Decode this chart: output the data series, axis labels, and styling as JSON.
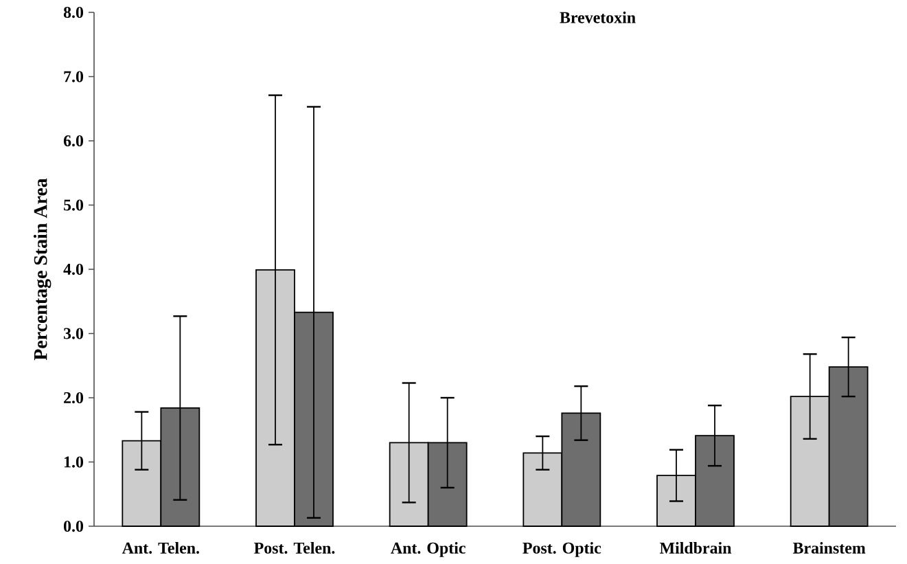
{
  "chart_data": {
    "type": "bar",
    "title": "Brevetoxin",
    "ylabel": "Percentage Stain Area",
    "categories": [
      "Ant. Telen.",
      "Post. Telen.",
      "Ant. Optic",
      "Post. Optic",
      "Mildbrain",
      "Brainstem"
    ],
    "series": [
      {
        "color": "#cccccc",
        "values": [
          1.33,
          3.99,
          1.3,
          1.14,
          0.79,
          2.02
        ],
        "errors": [
          0.45,
          2.72,
          0.93,
          0.26,
          0.4,
          0.66
        ]
      },
      {
        "color": "#6e6e6e",
        "values": [
          1.84,
          3.33,
          1.3,
          1.76,
          1.41,
          2.48
        ],
        "errors": [
          1.43,
          3.2,
          0.7,
          0.42,
          0.47,
          0.46
        ]
      }
    ],
    "ylim": [
      0,
      8
    ],
    "yticks": [
      {
        "value": 0,
        "label": "0.0"
      },
      {
        "value": 1,
        "label": "1.0"
      },
      {
        "value": 2,
        "label": "2.0"
      },
      {
        "value": 3,
        "label": "3.0"
      },
      {
        "value": 4,
        "label": "4.0"
      },
      {
        "value": 5,
        "label": "5.0"
      },
      {
        "value": 6,
        "label": "6.0"
      },
      {
        "value": 7,
        "label": "7.0"
      },
      {
        "value": 8,
        "label": "8.0"
      }
    ],
    "grid": false
  }
}
